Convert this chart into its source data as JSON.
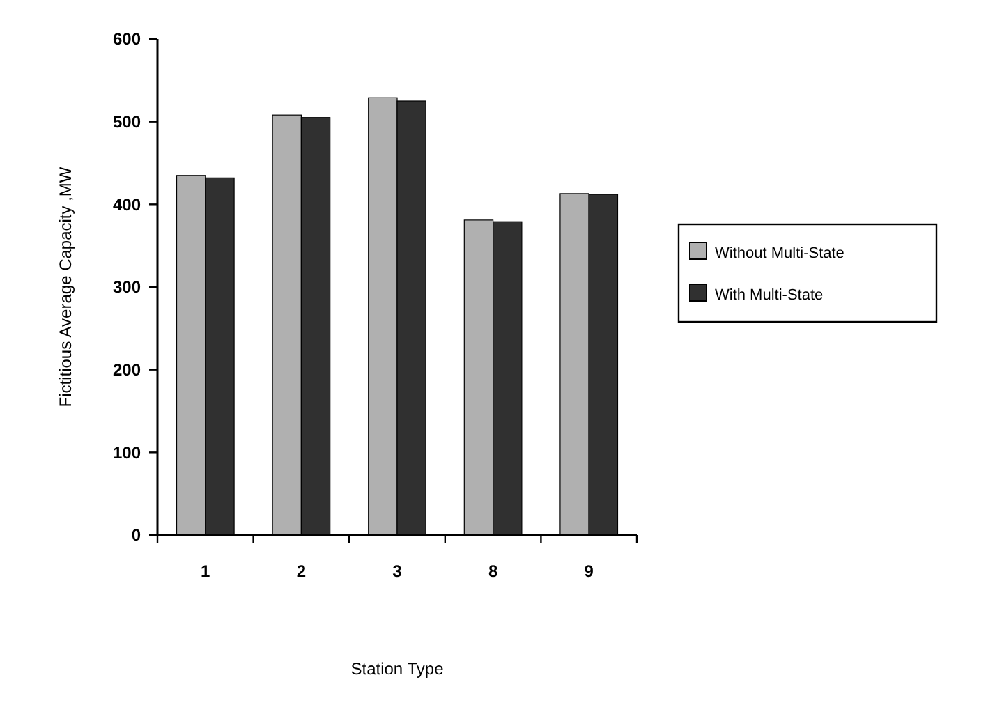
{
  "chart_data": {
    "type": "bar",
    "xlabel": "Station Type",
    "ylabel": "Fictitious Average Capacity ,MW",
    "categories": [
      "1",
      "2",
      "3",
      "8",
      "9"
    ],
    "series": [
      {
        "name": "Without Multi-State",
        "color": "#b0b0b0",
        "values": [
          435,
          508,
          529,
          381,
          413
        ]
      },
      {
        "name": "With Multi-State",
        "color": "#303030",
        "values": [
          432,
          505,
          525,
          379,
          412
        ]
      }
    ],
    "ylim": [
      0,
      600
    ],
    "yticks": [
      0,
      100,
      200,
      300,
      400,
      500,
      600
    ],
    "grid": false,
    "legend": "right"
  }
}
